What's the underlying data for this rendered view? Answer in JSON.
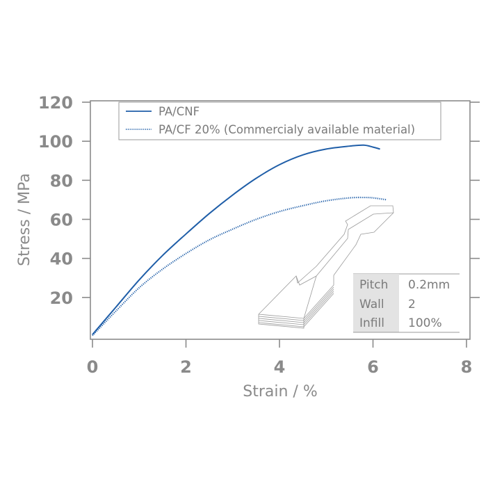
{
  "chart_data": {
    "type": "line",
    "xlabel": "Strain / %",
    "ylabel": "Stress / MPa",
    "xlim": [
      0,
      8
    ],
    "ylim": [
      0,
      120
    ],
    "xticks": [
      0,
      2,
      4,
      6,
      8
    ],
    "yticks": [
      20,
      40,
      60,
      80,
      100,
      120
    ],
    "grid": false,
    "legend_position": "top",
    "series": [
      {
        "name": "PA/CNF",
        "style": "solid",
        "color": "#1f5ea8",
        "x": [
          0,
          0.5,
          1.0,
          1.5,
          2.0,
          2.5,
          3.0,
          3.5,
          4.0,
          4.5,
          5.0,
          5.5,
          5.8,
          6.0,
          6.15
        ],
        "y": [
          1,
          15,
          29,
          41.5,
          52.5,
          63,
          72.5,
          81,
          88,
          93,
          96,
          97.5,
          98,
          97,
          96
        ]
      },
      {
        "name": "PA/CF 20% (Commercialy available material)",
        "style": "dotted",
        "color": "#1f5ea8",
        "x": [
          0,
          0.5,
          1.0,
          1.5,
          2.0,
          2.5,
          3.0,
          3.5,
          4.0,
          4.5,
          5.0,
          5.5,
          5.8,
          6.0,
          6.3
        ],
        "y": [
          0.5,
          13,
          25,
          34.5,
          42.5,
          49.5,
          55,
          60,
          64,
          67,
          69.5,
          71,
          71.2,
          71,
          70
        ]
      }
    ]
  },
  "inset_table": {
    "rows": [
      {
        "label": "Pitch",
        "value": "0.2mm"
      },
      {
        "label": "Wall",
        "value": "2"
      },
      {
        "label": "Infill",
        "value": "100%"
      }
    ]
  },
  "colors": {
    "series": "#1f5ea8",
    "axis": "#8a8a8a",
    "table_label_bg": "#e3e3e3"
  }
}
